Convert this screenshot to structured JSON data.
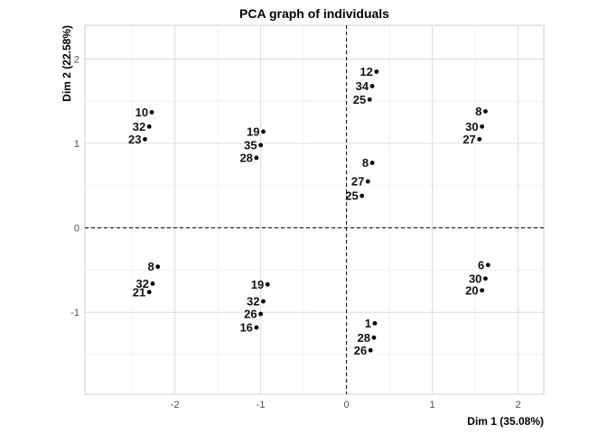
{
  "chart_data": {
    "type": "scatter",
    "title": "PCA graph of individuals",
    "xlabel": "Dim 1 (35.08%)",
    "ylabel": "Dim 2 (22.58%)",
    "xlim": [
      -3.05,
      2.3
    ],
    "ylim": [
      -1.97,
      2.4
    ],
    "x_ticks": [
      -2,
      -1,
      0,
      1,
      2
    ],
    "y_ticks": [
      -1,
      0,
      1,
      2
    ],
    "x_tick_labels": [
      "-2",
      "-1",
      "0",
      "1",
      "2"
    ],
    "y_tick_labels": [
      "-1",
      "0",
      "1",
      "2"
    ],
    "grid": true,
    "reference_lines": {
      "x": 0,
      "y": 0,
      "style": "dashed"
    },
    "points": [
      {
        "x": -2.27,
        "y": 1.37,
        "label": "10"
      },
      {
        "x": -2.3,
        "y": 1.2,
        "label": "32"
      },
      {
        "x": -2.35,
        "y": 1.05,
        "label": "23"
      },
      {
        "x": -0.97,
        "y": 1.14,
        "label": "19"
      },
      {
        "x": -1.0,
        "y": 0.98,
        "label": "35"
      },
      {
        "x": -1.05,
        "y": 0.83,
        "label": "28"
      },
      {
        "x": 0.35,
        "y": 1.85,
        "label": "12"
      },
      {
        "x": 0.3,
        "y": 1.68,
        "label": "34"
      },
      {
        "x": 0.27,
        "y": 1.52,
        "label": "25"
      },
      {
        "x": 1.62,
        "y": 1.38,
        "label": "8"
      },
      {
        "x": 1.58,
        "y": 1.2,
        "label": "30"
      },
      {
        "x": 1.55,
        "y": 1.05,
        "label": "27"
      },
      {
        "x": 0.3,
        "y": 0.77,
        "label": "8"
      },
      {
        "x": 0.25,
        "y": 0.55,
        "label": "27"
      },
      {
        "x": 0.18,
        "y": 0.38,
        "label": "25"
      },
      {
        "x": -2.2,
        "y": -0.46,
        "label": "8"
      },
      {
        "x": -2.26,
        "y": -0.66,
        "label": "32"
      },
      {
        "x": -2.3,
        "y": -0.76,
        "label": "21"
      },
      {
        "x": -0.92,
        "y": -0.67,
        "label": "19"
      },
      {
        "x": -0.97,
        "y": -0.87,
        "label": "32"
      },
      {
        "x": -1.0,
        "y": -1.02,
        "label": "26"
      },
      {
        "x": -1.05,
        "y": -1.18,
        "label": "16"
      },
      {
        "x": 0.33,
        "y": -1.13,
        "label": "1"
      },
      {
        "x": 0.32,
        "y": -1.3,
        "label": "28"
      },
      {
        "x": 0.28,
        "y": -1.45,
        "label": "26"
      },
      {
        "x": 1.65,
        "y": -0.44,
        "label": "6"
      },
      {
        "x": 1.62,
        "y": -0.6,
        "label": "30"
      },
      {
        "x": 1.58,
        "y": -0.74,
        "label": "20"
      }
    ]
  }
}
